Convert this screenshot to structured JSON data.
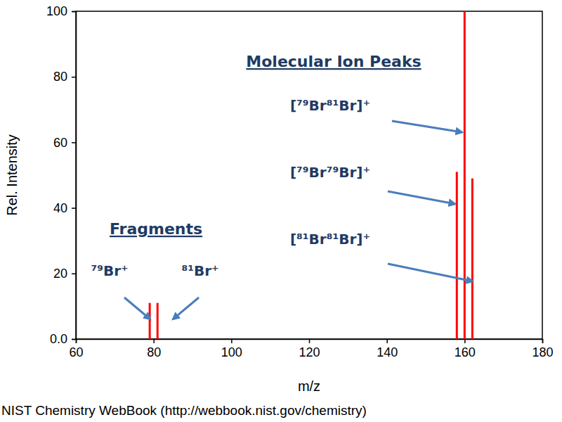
{
  "chart_data": {
    "type": "bar",
    "x": [
      79,
      81,
      158,
      160,
      162
    ],
    "values": [
      11,
      11,
      51,
      100,
      49
    ],
    "color": "#ff0000",
    "xlabel": "m/z",
    "ylabel": "Rel. Intensity",
    "xlim": [
      60,
      180
    ],
    "xticks": [
      60,
      80,
      100,
      120,
      140,
      160,
      180
    ],
    "ylim": [
      0,
      100
    ],
    "yticks": [
      {
        "value": 0,
        "label": "0.0"
      },
      20,
      40,
      60,
      80,
      100
    ],
    "grid": false,
    "annotations": [
      "Molecular Ion Peaks",
      "Fragments",
      "[⁷⁹Br⁸¹Br]⁺",
      "[⁷⁹Br⁷⁹Br]⁺",
      "[⁸¹Br⁸¹Br]⁺",
      "⁷⁹Br⁺",
      "⁸¹Br⁺"
    ],
    "source": "NIST Chemistry WebBook (http://webbook.nist.gov/chemistry)"
  }
}
